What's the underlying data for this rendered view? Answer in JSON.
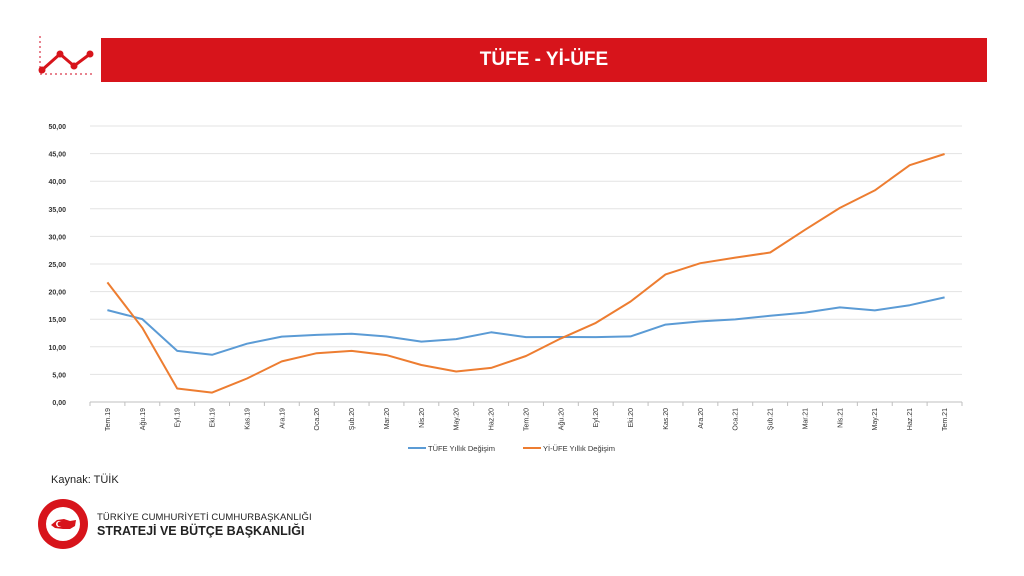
{
  "header": {
    "title": "TÜFE - Yİ-ÜFE"
  },
  "source": "Kaynak: TÜİK",
  "organization": {
    "line1": "TÜRKİYE CUMHURİYETİ CUMHURBAŞKANLIĞI",
    "line2": "STRATEJİ VE BÜTÇE BAŞKANLIĞI"
  },
  "colors": {
    "brand_red": "#d7141b",
    "tufe": "#5b9bd5",
    "yiufe": "#ed7d31"
  },
  "chart_data": {
    "type": "line",
    "title": "",
    "xlabel": "",
    "ylabel": "",
    "ylim": [
      0,
      50
    ],
    "y_ticks": [
      "0,00",
      "5,00",
      "10,00",
      "15,00",
      "20,00",
      "25,00",
      "30,00",
      "35,00",
      "40,00",
      "45,00",
      "50,00"
    ],
    "grid": true,
    "legend_position": "bottom",
    "categories": [
      "Tem.19",
      "Ağu.19",
      "Eyl.19",
      "Eki.19",
      "Kas.19",
      "Ara.19",
      "Oca.20",
      "Şub.20",
      "Mar.20",
      "Nis.20",
      "May.20",
      "Haz.20",
      "Tem.20",
      "Ağu.20",
      "Eyl.20",
      "Eki.20",
      "Kas.20",
      "Ara.20",
      "Oca.21",
      "Şub.21",
      "Mar.21",
      "Nis.21",
      "May.21",
      "Haz.21",
      "Tem.21"
    ],
    "series": [
      {
        "name": "TÜFE Yıllık Değişim",
        "color": "#5b9bd5",
        "values": [
          16.65,
          15.01,
          9.26,
          8.55,
          10.56,
          11.84,
          12.15,
          12.37,
          11.86,
          10.94,
          11.39,
          12.62,
          11.76,
          11.77,
          11.75,
          11.89,
          14.03,
          14.6,
          14.97,
          15.61,
          16.19,
          17.14,
          16.59,
          17.53,
          18.95
        ]
      },
      {
        "name": "Yİ-ÜFE Yıllık Değişim",
        "color": "#ed7d31",
        "values": [
          21.66,
          13.45,
          2.45,
          1.7,
          4.26,
          7.36,
          8.84,
          9.26,
          8.5,
          6.71,
          5.53,
          6.17,
          8.33,
          11.53,
          14.33,
          18.2,
          23.11,
          25.15,
          26.16,
          27.09,
          31.2,
          35.17,
          38.33,
          42.89,
          44.92
        ]
      }
    ]
  }
}
